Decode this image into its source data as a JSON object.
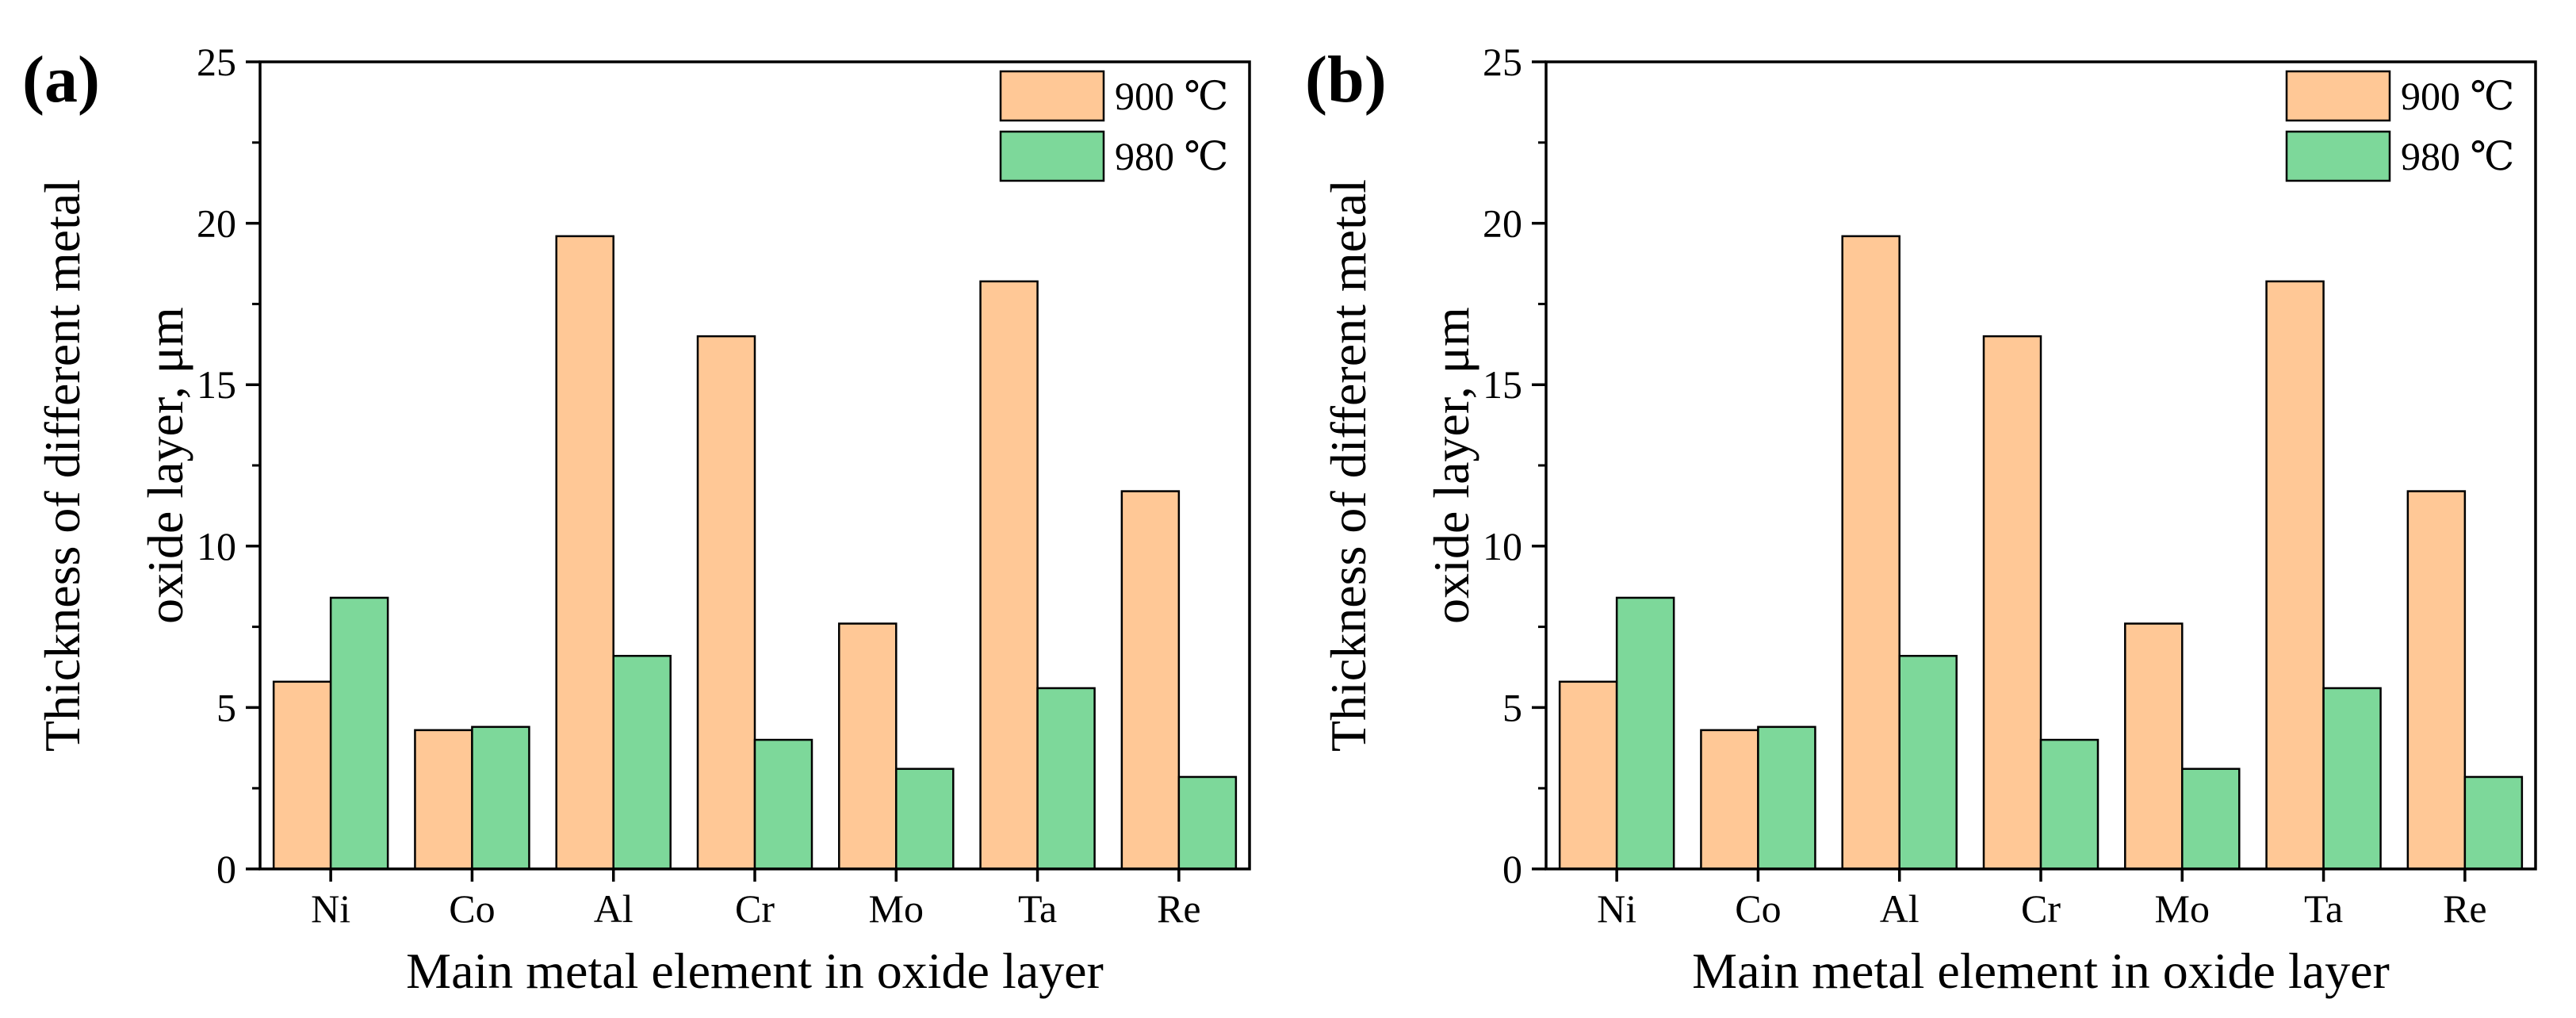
{
  "colors": {
    "series_900": "#FFC896",
    "series_980": "#7DD89A",
    "stroke": "#000000"
  },
  "chart_data": [
    {
      "panel_label": "(a)",
      "type": "bar",
      "categories": [
        "Ni",
        "Co",
        "Al",
        "Cr",
        "Mo",
        "Ta",
        "Re"
      ],
      "series": [
        {
          "name": "900 ℃",
          "values": [
            5.8,
            4.3,
            19.6,
            16.5,
            7.6,
            18.2,
            11.7
          ]
        },
        {
          "name": "980 ℃",
          "values": [
            8.4,
            4.4,
            6.6,
            4.0,
            3.1,
            5.6,
            2.85
          ]
        }
      ],
      "xlabel": "Main metal element in oxide layer",
      "ylabel_line1": "Thickness of different metal",
      "ylabel_line2": "oxide layer, μm",
      "ylim": [
        0,
        25
      ],
      "yticks": [
        0,
        5,
        10,
        15,
        20,
        25
      ],
      "legend_position": "top-right",
      "grid": false
    },
    {
      "panel_label": "(b)",
      "type": "bar",
      "categories": [
        "Ni",
        "Co",
        "Al",
        "Cr",
        "Mo",
        "Ta",
        "Re"
      ],
      "series": [
        {
          "name": "900 ℃",
          "values": [
            5.8,
            4.3,
            19.6,
            16.5,
            7.6,
            18.2,
            11.7
          ]
        },
        {
          "name": "980 ℃",
          "values": [
            8.4,
            4.4,
            6.6,
            4.0,
            3.1,
            5.6,
            2.85
          ]
        }
      ],
      "xlabel": "Main metal element in oxide layer",
      "ylabel_line1": "Thickness of different metal",
      "ylabel_line2": "oxide layer, μm",
      "ylim": [
        0,
        25
      ],
      "yticks": [
        0,
        5,
        10,
        15,
        20,
        25
      ],
      "legend_position": "top-right",
      "grid": false
    }
  ]
}
